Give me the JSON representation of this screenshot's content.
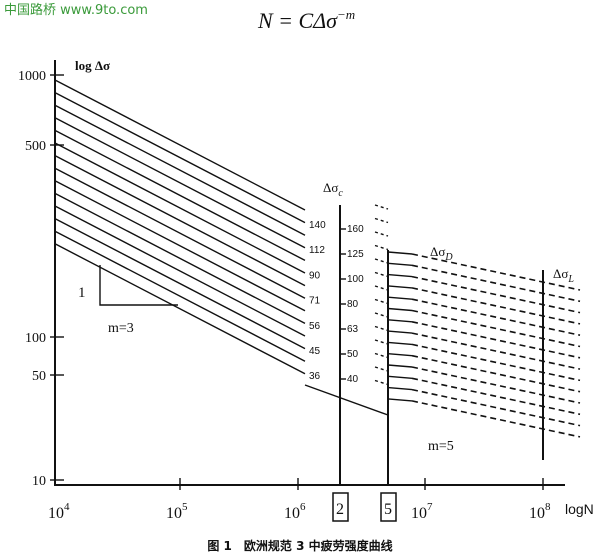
{
  "watermark": "中国路桥 www.9to.com",
  "formula": {
    "main": "N = CΔσ",
    "exponent": "−m"
  },
  "y_axis": {
    "label": "log Δσ",
    "ticks": [
      "1000",
      "500",
      "100",
      "50",
      "10"
    ]
  },
  "x_axis": {
    "label": "logN",
    "ticks": [
      {
        "base": "10",
        "exp": "4"
      },
      {
        "base": "10",
        "exp": "5"
      },
      {
        "base": "10",
        "exp": "6"
      },
      {
        "base": "10",
        "exp": "7"
      },
      {
        "base": "10",
        "exp": "8"
      }
    ],
    "boxed": [
      "2",
      "5"
    ]
  },
  "curve_labels_m3": [
    "140",
    "112",
    "90",
    "71",
    "56",
    "45",
    "36"
  ],
  "curve_labels_c": [
    "160",
    "125",
    "100",
    "80",
    "63",
    "50",
    "40"
  ],
  "sigma_c": {
    "main": "Δσ",
    "sub": "c"
  },
  "sigma_d": {
    "main": "Δσ",
    "sub": "D"
  },
  "sigma_l": {
    "main": "Δσ",
    "sub": "L"
  },
  "slope_one": "1",
  "m3": "m=3",
  "m5": "m=5",
  "caption": "图 1　欧洲规范 3 中疲劳强度曲线"
}
